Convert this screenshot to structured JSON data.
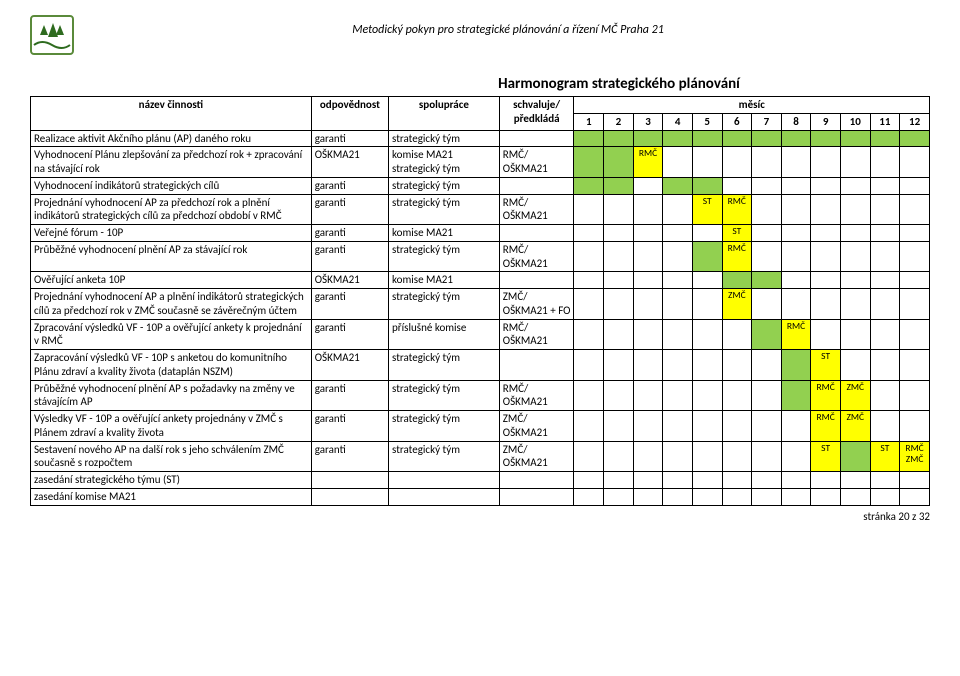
{
  "doc_header": "Metodický pokyn pro strategické plánování a řízení MČ Praha 21",
  "table_title": "Harmonogram strategického plánování",
  "headers": {
    "nazev": "název činnosti",
    "odp": "odpovědnost",
    "spol": "spolupráce",
    "sch1": "schvaluje/",
    "sch2": "předkládá",
    "mesic": "měsíc"
  },
  "months": [
    "1",
    "2",
    "3",
    "4",
    "5",
    "6",
    "7",
    "8",
    "9",
    "10",
    "11",
    "12"
  ],
  "colors": {
    "green": "#92d050",
    "yellow": "#ffff00",
    "border": "#000000"
  },
  "rows": [
    {
      "nazev": "Realizace aktivit Akčního plánu (AP) daného roku",
      "odp": "garanti",
      "spol": "strategický tým",
      "sch": "",
      "cells": [
        {
          "fill": "green"
        },
        {
          "fill": "green"
        },
        {
          "fill": "green"
        },
        {
          "fill": "green"
        },
        {
          "fill": "green"
        },
        {
          "fill": "green"
        },
        {
          "fill": "green"
        },
        {
          "fill": "green"
        },
        {
          "fill": "green"
        },
        {
          "fill": "green"
        },
        {
          "fill": "green"
        },
        {
          "fill": "green"
        }
      ]
    },
    {
      "nazev": "Vyhodnocení Plánu zlepšování za předchozí rok + zpracování na stávající rok",
      "odp": "OŠKMA21",
      "spol": "komise MA21 strategický tým",
      "sch": "RMČ/ OŠKMA21",
      "cells": [
        {
          "fill": "green"
        },
        {
          "fill": "green"
        },
        {
          "fill": "yellow",
          "label": "RMČ"
        },
        {},
        {},
        {},
        {},
        {},
        {},
        {},
        {},
        {}
      ]
    },
    {
      "nazev": "Vyhodnocení indikátorů strategických cílů",
      "odp": "garanti",
      "spol": "strategický tým",
      "sch": "",
      "cells": [
        {
          "fill": "green"
        },
        {
          "fill": "green"
        },
        {},
        {
          "fill": "green"
        },
        {
          "fill": "green"
        },
        {},
        {},
        {},
        {},
        {},
        {},
        {}
      ]
    },
    {
      "nazev": "Projednání vyhodnocení AP za předchozí rok a plnění indikátorů strategických cílů za předchozí období v RMČ",
      "odp": "garanti",
      "spol": "strategický tým",
      "sch": "RMČ/ OŠKMA21",
      "cells": [
        {},
        {},
        {},
        {},
        {
          "fill": "yellow",
          "label": "ST"
        },
        {
          "fill": "yellow",
          "label": "RMČ"
        },
        {},
        {},
        {},
        {},
        {},
        {}
      ]
    },
    {
      "nazev": "Veřejné fórum - 10P",
      "odp": "garanti",
      "spol": "komise MA21",
      "sch": "",
      "cells": [
        {},
        {},
        {},
        {},
        {},
        {
          "fill": "yellow",
          "label": "ST"
        },
        {},
        {},
        {},
        {},
        {},
        {}
      ]
    },
    {
      "nazev": "Průběžné vyhodnocení plnění AP za stávající rok",
      "odp": "garanti",
      "spol": "strategický tým",
      "sch": "RMČ/ OŠKMA21",
      "cells": [
        {},
        {},
        {},
        {},
        {
          "fill": "green"
        },
        {
          "fill": "yellow",
          "label": "RMČ"
        },
        {},
        {},
        {},
        {},
        {},
        {}
      ]
    },
    {
      "nazev": "Ověřující anketa 10P",
      "odp": "OŠKMA21",
      "spol": "komise MA21",
      "sch": "",
      "cells": [
        {},
        {},
        {},
        {},
        {},
        {
          "fill": "green"
        },
        {
          "fill": "green"
        },
        {},
        {},
        {},
        {},
        {}
      ]
    },
    {
      "nazev": "Projednání vyhodnocení AP a plnění indikátorů strategických cílů za předchozí rok v ZMČ současně se závěrečným účtem",
      "odp": "garanti",
      "spol": "strategický tým",
      "sch": "ZMČ/ OŠKMA21 + FO",
      "cells": [
        {},
        {},
        {},
        {},
        {},
        {
          "fill": "yellow",
          "label": "ZMČ"
        },
        {},
        {},
        {},
        {},
        {},
        {}
      ]
    },
    {
      "nazev": "Zpracování výsledků VF - 10P a ověřující ankety k projednání v RMČ",
      "odp": "garanti",
      "spol": "příslušné komise",
      "sch": "RMČ/ OŠKMA21",
      "cells": [
        {},
        {},
        {},
        {},
        {},
        {},
        {
          "fill": "green"
        },
        {
          "fill": "yellow",
          "label": "RMČ"
        },
        {},
        {},
        {},
        {}
      ]
    },
    {
      "nazev": "Zapracování výsledků VF - 10P s anketou do komunitního Plánu zdraví a kvality života (dataplán NSZM)",
      "odp": "OŠKMA21",
      "spol": "strategický tým",
      "sch": "",
      "cells": [
        {},
        {},
        {},
        {},
        {},
        {},
        {},
        {
          "fill": "green"
        },
        {
          "fill": "yellow",
          "label": "ST"
        },
        {},
        {},
        {}
      ]
    },
    {
      "nazev": "Průběžné vyhodnocení plnění AP s požadavky na změny ve stávajícím AP",
      "odp": "garanti",
      "spol": "strategický tým",
      "sch": "RMČ/ OŠKMA21",
      "cells": [
        {},
        {},
        {},
        {},
        {},
        {},
        {},
        {
          "fill": "green"
        },
        {
          "fill": "yellow",
          "label": "RMČ"
        },
        {
          "fill": "yellow",
          "label": "ZMČ"
        },
        {},
        {}
      ]
    },
    {
      "nazev": "Výsledky VF - 10P a ověřující ankety projednány v ZMČ s Plánem zdraví a kvality života",
      "odp": "garanti",
      "spol": "strategický tým",
      "sch": "ZMČ/ OŠKMA21",
      "cells": [
        {},
        {},
        {},
        {},
        {},
        {},
        {},
        {},
        {
          "fill": "yellow",
          "label": "RMČ"
        },
        {
          "fill": "yellow",
          "label": "ZMČ"
        },
        {},
        {}
      ]
    },
    {
      "nazev": "Sestavení nového AP na další rok s jeho schválením ZMČ současně s rozpočtem",
      "odp": "garanti",
      "spol": "strategický tým",
      "sch": "ZMČ/ OŠKMA21",
      "cells": [
        {},
        {},
        {},
        {},
        {},
        {},
        {},
        {},
        {
          "fill": "yellow",
          "label": "ST"
        },
        {
          "fill": "green"
        },
        {
          "fill": "yellow",
          "label": "ST"
        },
        {
          "fill": "yellow",
          "label": "RMČ"
        }
      ],
      "extra_last": "ZMČ"
    },
    {
      "nazev": "zasedání strategického týmu (ST)",
      "odp": "",
      "spol": "",
      "sch": "",
      "cells": [
        {},
        {},
        {},
        {},
        {},
        {},
        {},
        {},
        {},
        {},
        {},
        {}
      ]
    },
    {
      "nazev": "zasedání komise MA21",
      "odp": "",
      "spol": "",
      "sch": "",
      "cells": [
        {},
        {},
        {},
        {},
        {},
        {},
        {},
        {},
        {},
        {},
        {},
        {}
      ]
    }
  ],
  "footer": "stránka 20 z 32"
}
